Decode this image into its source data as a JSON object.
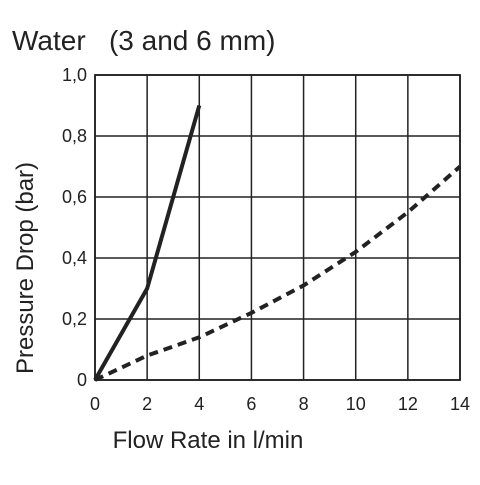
{
  "chart_data": {
    "type": "line",
    "title": "Water   (3 and 6 mm)",
    "xlabel": "Flow Rate in l/min",
    "ylabel": "Pressure Drop (bar)",
    "xlim": [
      0,
      14
    ],
    "ylim": [
      0,
      1.0
    ],
    "grid": true,
    "x_ticks": [
      0,
      2,
      4,
      6,
      8,
      10,
      12,
      14
    ],
    "y_ticks": [
      0,
      0.2,
      0.4,
      0.6,
      0.8,
      1.0
    ],
    "x_tick_labels": [
      "0",
      "2",
      "4",
      "6",
      "8",
      "10",
      "12",
      "14"
    ],
    "y_tick_labels": [
      "0",
      "0,2",
      "0,4",
      "0,6",
      "0,8",
      "1,0"
    ],
    "series": [
      {
        "style": "solid",
        "color": "#222222",
        "points": [
          {
            "x": 0,
            "y": 0
          },
          {
            "x": 2,
            "y": 0.3
          },
          {
            "x": 4,
            "y": 0.9
          }
        ]
      },
      {
        "style": "dashed",
        "color": "#222222",
        "points": [
          {
            "x": 0,
            "y": 0
          },
          {
            "x": 2,
            "y": 0.08
          },
          {
            "x": 4,
            "y": 0.14
          },
          {
            "x": 6,
            "y": 0.22
          },
          {
            "x": 8,
            "y": 0.31
          },
          {
            "x": 10,
            "y": 0.42
          },
          {
            "x": 12,
            "y": 0.55
          },
          {
            "x": 14,
            "y": 0.7
          }
        ]
      }
    ]
  }
}
